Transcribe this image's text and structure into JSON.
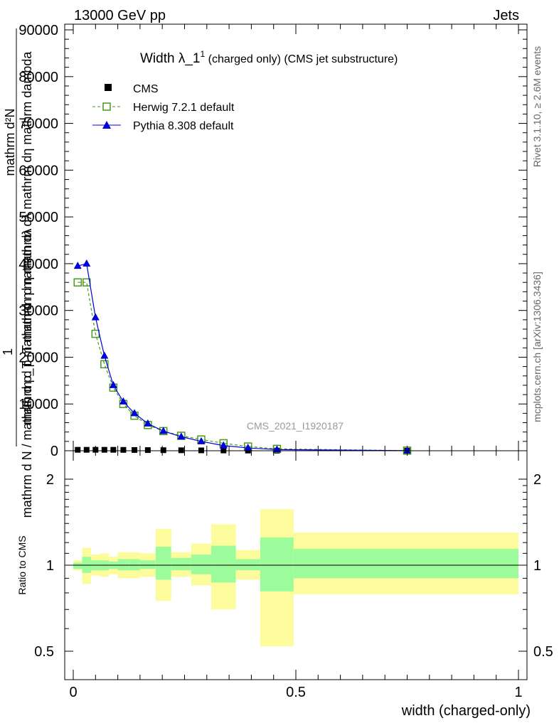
{
  "header": {
    "left_title": "13000 GeV pp",
    "right_title": "Jets"
  },
  "side_labels": {
    "rivet": "Rivet 3.1.10, ≥ 2.6M events",
    "mcplots": "mcplots.cern.ch [arXiv:1306.3436]"
  },
  "chart_data": [
    {
      "type": "line",
      "title_main": "Width λ_1",
      "title_sup": "1",
      "title_rest": " (charged only) (CMS jet substructure)",
      "watermark": "CMS_2021_I1920187",
      "ylabel_num": "1",
      "ylabel_den": "mathrm d N / mathrm d p_T mathrm d η mathrm dλ",
      "ylabel_num2": "mathrm d²N",
      "ylabel_den2": "mathrm d p_T mathrm d η mathrm dλ mathrm dη mathrm dambda",
      "xlim": [
        0,
        1
      ],
      "ylim": [
        0,
        90000
      ],
      "yticks": [
        0,
        10000,
        20000,
        30000,
        40000,
        50000,
        60000,
        70000,
        80000,
        90000
      ],
      "ytick_labels": [
        "0",
        "10000",
        "20000",
        "30000",
        "40000",
        "50000",
        "60000",
        "70000",
        "80000",
        "90000"
      ],
      "grid": false,
      "legend_position": "top-left",
      "series": [
        {
          "name": "CMS",
          "color": "#000000",
          "marker": "square-filled",
          "x": [
            0.01,
            0.03,
            0.05,
            0.07,
            0.09,
            0.1125,
            0.1375,
            0.1675,
            0.2025,
            0.2425,
            0.2875,
            0.3375,
            0.3925,
            0.4575,
            0.75
          ],
          "y": [
            200,
            200,
            200,
            200,
            200,
            180,
            160,
            140,
            120,
            100,
            80,
            60,
            40,
            20,
            5
          ]
        },
        {
          "name": "Herwig 7.2.1 default",
          "color": "#4a9a1e",
          "marker": "square-open",
          "dashed": true,
          "x": [
            0.01,
            0.03,
            0.05,
            0.07,
            0.09,
            0.1125,
            0.1375,
            0.1675,
            0.2025,
            0.2425,
            0.2875,
            0.3375,
            0.3925,
            0.4575,
            0.75
          ],
          "y": [
            36000,
            36000,
            25000,
            18500,
            13500,
            10000,
            7500,
            5500,
            4200,
            3200,
            2400,
            1600,
            900,
            400,
            20
          ]
        },
        {
          "name": "Pythia 8.308 default",
          "color": "#0000dd",
          "marker": "triangle-filled",
          "dashed": false,
          "x": [
            0.01,
            0.03,
            0.05,
            0.07,
            0.09,
            0.1125,
            0.1375,
            0.1675,
            0.2025,
            0.2425,
            0.2875,
            0.3375,
            0.3925,
            0.4575,
            0.75
          ],
          "y": [
            39500,
            40000,
            28500,
            20300,
            14000,
            10500,
            8000,
            5800,
            4200,
            3000,
            2000,
            1100,
            600,
            250,
            20
          ]
        }
      ]
    },
    {
      "type": "area",
      "ylabel": "Ratio to CMS",
      "xlabel": "width (charged-only)",
      "xlim": [
        0,
        1
      ],
      "ylim": [
        0.4,
        2.3
      ],
      "xticks": [
        0,
        0.5,
        1
      ],
      "xtick_labels": [
        "0",
        "0.5",
        "1"
      ],
      "yticks_labeled": [
        0.5,
        1,
        2
      ],
      "ytick_labels": [
        "0.5",
        "1",
        "2"
      ],
      "reference_line": 1,
      "bands": [
        {
          "x0": 0.0,
          "x1": 0.02,
          "stat_lo": 0.97,
          "stat_hi": 1.02,
          "tot_lo": 0.96,
          "tot_hi": 1.04
        },
        {
          "x0": 0.02,
          "x1": 0.04,
          "stat_lo": 0.94,
          "stat_hi": 1.07,
          "tot_lo": 0.86,
          "tot_hi": 1.15
        },
        {
          "x0": 0.04,
          "x1": 0.06,
          "stat_lo": 0.96,
          "stat_hi": 1.04,
          "tot_lo": 0.92,
          "tot_hi": 1.09
        },
        {
          "x0": 0.06,
          "x1": 0.08,
          "stat_lo": 0.96,
          "stat_hi": 1.04,
          "tot_lo": 0.91,
          "tot_hi": 1.1
        },
        {
          "x0": 0.08,
          "x1": 0.1,
          "stat_lo": 0.97,
          "stat_hi": 1.03,
          "tot_lo": 0.93,
          "tot_hi": 1.07
        },
        {
          "x0": 0.1,
          "x1": 0.125,
          "stat_lo": 0.96,
          "stat_hi": 1.05,
          "tot_lo": 0.9,
          "tot_hi": 1.11
        },
        {
          "x0": 0.125,
          "x1": 0.15,
          "stat_lo": 0.96,
          "stat_hi": 1.05,
          "tot_lo": 0.9,
          "tot_hi": 1.11
        },
        {
          "x0": 0.15,
          "x1": 0.185,
          "stat_lo": 0.97,
          "stat_hi": 1.04,
          "tot_lo": 0.91,
          "tot_hi": 1.1
        },
        {
          "x0": 0.185,
          "x1": 0.22,
          "stat_lo": 0.89,
          "stat_hi": 1.16,
          "tot_lo": 0.75,
          "tot_hi": 1.34
        },
        {
          "x0": 0.22,
          "x1": 0.265,
          "stat_lo": 0.96,
          "stat_hi": 1.06,
          "tot_lo": 0.91,
          "tot_hi": 1.11
        },
        {
          "x0": 0.265,
          "x1": 0.31,
          "stat_lo": 0.93,
          "stat_hi": 1.09,
          "tot_lo": 0.85,
          "tot_hi": 1.19
        },
        {
          "x0": 0.31,
          "x1": 0.365,
          "stat_lo": 0.87,
          "stat_hi": 1.17,
          "tot_lo": 0.7,
          "tot_hi": 1.39
        },
        {
          "x0": 0.365,
          "x1": 0.42,
          "stat_lo": 0.96,
          "stat_hi": 1.05,
          "tot_lo": 0.89,
          "tot_hi": 1.13
        },
        {
          "x0": 0.42,
          "x1": 0.495,
          "stat_lo": 0.81,
          "stat_hi": 1.25,
          "tot_lo": 0.52,
          "tot_hi": 1.57
        },
        {
          "x0": 0.495,
          "x1": 1.0,
          "stat_lo": 0.9,
          "stat_hi": 1.14,
          "tot_lo": 0.79,
          "tot_hi": 1.3
        }
      ],
      "colors": {
        "stat": "#9cfc9c",
        "total": "#fcfc9c"
      }
    }
  ]
}
